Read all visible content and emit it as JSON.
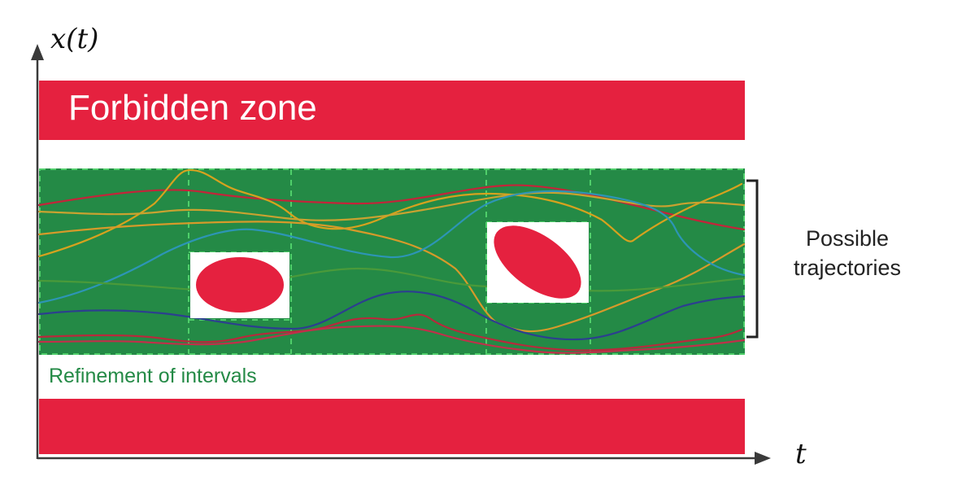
{
  "figure": {
    "forbidden_zone_label": "Forbidden zone",
    "refinement_label": "Refinement of intervals",
    "trajectories_label": "Possible trajectories",
    "y_axis_label": "x(t)",
    "x_axis_label": "t"
  },
  "colors": {
    "forbidden": "#e5213f",
    "tube": "#248a46",
    "tube_grid": "#4fcf6a",
    "label_green": "#248a46",
    "axis": "#3a3a3a",
    "trajectory_colors": [
      "#c4243a",
      "#d6a21e",
      "#2d95b5",
      "#2c3f8f",
      "#b7a728"
    ]
  }
}
